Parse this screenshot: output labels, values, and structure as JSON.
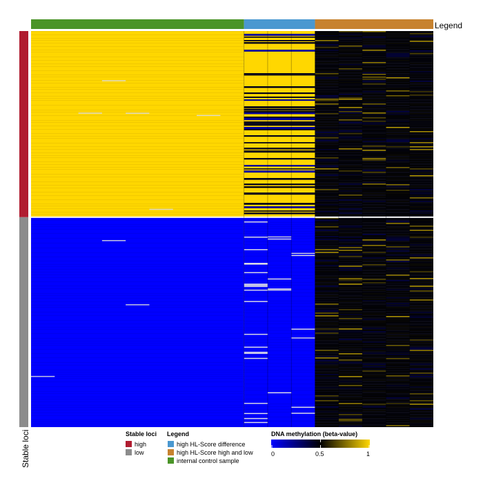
{
  "chart_data": {
    "type": "heatmap",
    "title": "",
    "top_annotation": {
      "label": "Legend",
      "segments": [
        {
          "name": "internal control sample",
          "color": "#4a9428",
          "columns": 9
        },
        {
          "name": "high HL-Score difference",
          "color": "#4a98d0",
          "columns": 3
        },
        {
          "name": "high HL-Score high and low",
          "color": "#c7822f",
          "columns": 5
        }
      ]
    },
    "row_annotation": {
      "label": "Stable loci",
      "segments": [
        {
          "name": "high",
          "color": "#b01c30",
          "fraction": 0.47
        },
        {
          "name": "low",
          "color": "#8c8c8c",
          "fraction": 0.53
        }
      ]
    },
    "legends": {
      "stable_loci": {
        "title": "Stable loci",
        "items": [
          {
            "label": "high",
            "color": "#b01c30"
          },
          {
            "label": "low",
            "color": "#8c8c8c"
          }
        ]
      },
      "legend": {
        "title": "Legend",
        "items": [
          {
            "label": "high HL-Score difference",
            "color": "#4a98d0"
          },
          {
            "label": "high HL-Score high and low",
            "color": "#c7822f"
          },
          {
            "label": "internal control sample",
            "color": "#4a9428"
          }
        ]
      },
      "color_scale": {
        "title": "DNA methylation (beta-value)",
        "colors": [
          "#0000ff",
          "#000000",
          "#ffd700"
        ],
        "ticks": [
          "0",
          "0.5",
          "1"
        ]
      }
    },
    "blocks": [
      {
        "rows": "high",
        "columns": "internal control sample",
        "beta": 1
      },
      {
        "rows": "low",
        "columns": "internal control sample",
        "beta": 0
      },
      {
        "rows": "high",
        "columns": "high HL-Score difference",
        "beta_range": [
          0,
          1
        ],
        "note": "mostly 1 with interspersed 0"
      },
      {
        "rows": "low",
        "columns": "high HL-Score difference",
        "beta": 0
      },
      {
        "rows": "all",
        "columns": "high HL-Score high and low",
        "beta_range": [
          0,
          1
        ],
        "note": "mostly 0.5"
      }
    ]
  }
}
